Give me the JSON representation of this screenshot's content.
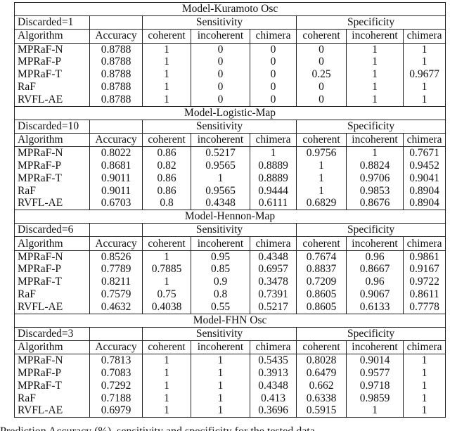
{
  "columns": {
    "algorithm": "Algorithm",
    "accuracy": "Accuracy",
    "sensitivity": "Sensitivity",
    "specificity": "Specificity",
    "classes": [
      "coherent",
      "incoherent",
      "chimera"
    ]
  },
  "sections": [
    {
      "title": "Model-Kuramoto Osc",
      "discarded": "Discarded=1",
      "rows": [
        [
          "MPRaF-N",
          "0.8788",
          "1",
          "0",
          "0",
          "0",
          "1",
          "1"
        ],
        [
          "MPRaF-P",
          "0.8788",
          "1",
          "0",
          "0",
          "0",
          "1",
          "1"
        ],
        [
          "MPRaF-T",
          "0.8788",
          "1",
          "0",
          "0",
          "0.25",
          "1",
          "0.9677"
        ],
        [
          "RaF",
          "0.8788",
          "1",
          "0",
          "0",
          "0",
          "1",
          "1"
        ],
        [
          "RVFL-AE",
          "0.8788",
          "1",
          "0",
          "0",
          "0",
          "1",
          "1"
        ]
      ]
    },
    {
      "title": "Model-Logistic-Map",
      "discarded": "Discarded=10",
      "rows": [
        [
          "MPRaF-N",
          "0.8022",
          "0.86",
          "0.5217",
          "1",
          "0.9756",
          "1",
          "0.7671"
        ],
        [
          "MPRaF-P",
          "0.8681",
          "0.82",
          "0.9565",
          "0.8889",
          "1",
          "0.8824",
          "0.9452"
        ],
        [
          "MPRaF-T",
          "0.9011",
          "0.86",
          "1",
          "0.8889",
          "1",
          "0.9706",
          "0.9041"
        ],
        [
          "RaF",
          "0.9011",
          "0.86",
          "0.9565",
          "0.9444",
          "1",
          "0.9853",
          "0.8904"
        ],
        [
          "RVFL-AE",
          "0.6703",
          "0.8",
          "0.4348",
          "0.6111",
          "0.6829",
          "0.8676",
          "0.8904"
        ]
      ]
    },
    {
      "title": "Model-Hennon-Map",
      "discarded": "Discarded=6",
      "rows": [
        [
          "MPRaF-N",
          "0.8526",
          "1",
          "0.95",
          "0.4348",
          "0.7674",
          "0.96",
          "0.9861"
        ],
        [
          "MPRaF-P",
          "0.7789",
          "0.7885",
          "0.85",
          "0.6957",
          "0.8837",
          "0.8667",
          "0.9167"
        ],
        [
          "MPRaF-T",
          "0.8211",
          "1",
          "0.9",
          "0.3478",
          "0.7209",
          "0.96",
          "0.9722"
        ],
        [
          "RaF",
          "0.7579",
          "0.75",
          "0.8",
          "0.7391",
          "0.8605",
          "0.9067",
          "0.8611"
        ],
        [
          "RVFL-AE",
          "0.4632",
          "0.4038",
          "0.55",
          "0.5217",
          "0.8605",
          "0.6133",
          "0.7778"
        ]
      ]
    },
    {
      "title": "Model-FHN Osc",
      "discarded": "Discarded=3",
      "rows": [
        [
          "MPRaF-N",
          "0.7813",
          "1",
          "1",
          "0.5435",
          "0.8028",
          "0.9014",
          "1"
        ],
        [
          "MPRaF-P",
          "0.7083",
          "1",
          "1",
          "0.3913",
          "0.6479",
          "0.9577",
          "1"
        ],
        [
          "MPRaF-T",
          "0.7292",
          "1",
          "1",
          "0.4348",
          "0.662",
          "0.9718",
          "1"
        ],
        [
          "RaF",
          "0.7188",
          "1",
          "1",
          "0.413",
          "0.6338",
          "0.9859",
          "1"
        ],
        [
          "RVFL-AE",
          "0.6979",
          "1",
          "1",
          "0.3696",
          "0.5915",
          "1",
          "1"
        ]
      ]
    }
  ],
  "caption": "Prediction Accuracy (%), sensitivity and specificity for the tested data"
}
